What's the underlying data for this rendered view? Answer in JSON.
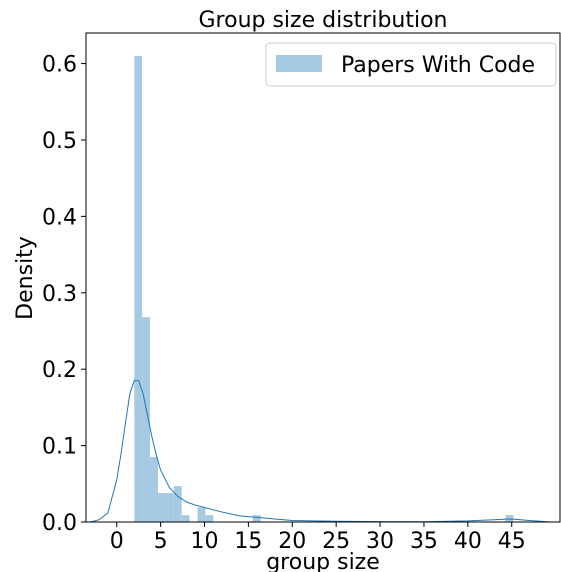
{
  "chart_data": {
    "type": "histogram",
    "title": "Group size distribution",
    "xlabel": "group size",
    "ylabel": "Density",
    "xlim": [
      -3.5,
      50.5
    ],
    "ylim": [
      0,
      0.64
    ],
    "xticks": [
      0,
      5,
      10,
      15,
      20,
      25,
      30,
      35,
      40,
      45
    ],
    "yticks": [
      0.0,
      0.1,
      0.2,
      0.3,
      0.4,
      0.5,
      0.6
    ],
    "ytick_labels": [
      "0.0",
      "0.1",
      "0.2",
      "0.3",
      "0.4",
      "0.5",
      "0.6"
    ],
    "bar_color": "#a6cae3",
    "kde_color": "#1f77b4",
    "legend": {
      "position": "top-right",
      "entries": [
        "Papers With Code"
      ]
    },
    "bins": [
      {
        "x0": 2.0,
        "x1": 2.9,
        "density": 0.61
      },
      {
        "x0": 2.9,
        "x1": 3.8,
        "density": 0.268
      },
      {
        "x0": 3.8,
        "x1": 4.7,
        "density": 0.085
      },
      {
        "x0": 4.7,
        "x1": 5.6,
        "density": 0.038
      },
      {
        "x0": 5.6,
        "x1": 6.5,
        "density": 0.038
      },
      {
        "x0": 6.5,
        "x1": 7.4,
        "density": 0.047
      },
      {
        "x0": 7.4,
        "x1": 8.3,
        "density": 0.009
      },
      {
        "x0": 9.2,
        "x1": 10.1,
        "density": 0.019
      },
      {
        "x0": 10.1,
        "x1": 11.0,
        "density": 0.009
      },
      {
        "x0": 15.5,
        "x1": 16.4,
        "density": 0.009
      },
      {
        "x0": 44.3,
        "x1": 45.2,
        "density": 0.009
      }
    ],
    "kde": {
      "x": [
        -3,
        -2,
        -1,
        0,
        0.5,
        1,
        1.5,
        2,
        2.5,
        3,
        3.5,
        4,
        4.5,
        5,
        6,
        7,
        8,
        9,
        10,
        12,
        14,
        16,
        18,
        20,
        25,
        30,
        35,
        40,
        43,
        45,
        47,
        49.5
      ],
      "y": [
        0.0,
        0.003,
        0.012,
        0.055,
        0.09,
        0.13,
        0.168,
        0.185,
        0.185,
        0.168,
        0.14,
        0.112,
        0.088,
        0.068,
        0.045,
        0.033,
        0.026,
        0.022,
        0.019,
        0.013,
        0.008,
        0.006,
        0.004,
        0.002,
        0.001,
        0.0005,
        0.0003,
        0.0015,
        0.003,
        0.004,
        0.002,
        0.0
      ]
    }
  }
}
